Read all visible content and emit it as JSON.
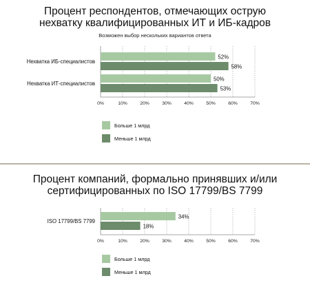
{
  "colors": {
    "light": "#a7c9a2",
    "dark": "#6d8c6c",
    "axis": "#8a8a8a",
    "divider": "#b9b3a6"
  },
  "chart_data": [
    {
      "type": "bar",
      "orientation": "horizontal",
      "title_line1": "Процент респондентов, отмечающих острую",
      "title_line2": "нехватку квалифицированных ИТ и ИБ-кадров",
      "subtitle": "Возможен выбор нескольких вариантов ответа",
      "categories": [
        "Нехватка ИБ-специалистов",
        "Нехватка ИТ-специалистов"
      ],
      "series": [
        {
          "name": "Больше 1 млрд",
          "values": [
            52,
            50
          ]
        },
        {
          "name": "Меньше 1 млрд",
          "values": [
            58,
            53
          ]
        }
      ],
      "xlim": [
        0,
        70
      ],
      "xticks": [
        "0%",
        "10%",
        "20%",
        "30%",
        "40%",
        "50%",
        "60%",
        "70%"
      ],
      "value_labels": [
        [
          "52%",
          "50%"
        ],
        [
          "58%",
          "53%"
        ]
      ],
      "grid": true,
      "legend_position": "bottom-left"
    },
    {
      "type": "bar",
      "orientation": "horizontal",
      "title_line1": "Процент компаний, формально принявших и/или",
      "title_line2": "сертифицированных по ISO 17799/BS 7799",
      "subtitle": "",
      "categories": [
        "ISO 17799/BS 7799"
      ],
      "series": [
        {
          "name": "Больше 1 млрд",
          "values": [
            34
          ]
        },
        {
          "name": "Меньше 1 млрд",
          "values": [
            18
          ]
        }
      ],
      "xlim": [
        0,
        70
      ],
      "xticks": [
        "0%",
        "10%",
        "20%",
        "30%",
        "40%",
        "50%",
        "60%",
        "70%"
      ],
      "value_labels": [
        [
          "34%"
        ],
        [
          "18%"
        ]
      ],
      "grid": true,
      "legend_position": "bottom-left"
    }
  ]
}
